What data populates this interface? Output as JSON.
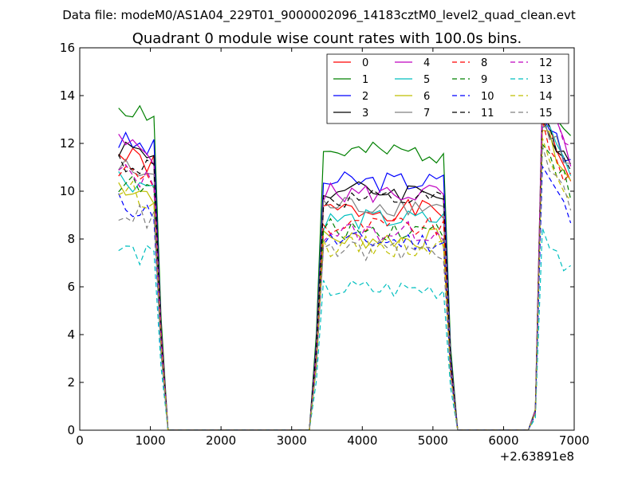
{
  "header": {
    "data_file": "Data file: modeM0/AS1A04_229T01_9000002096_14183cztM0_level2_quad_clean.evt"
  },
  "chart_data": {
    "type": "line",
    "title": "Quadrant 0 module wise count rates with 100.0s bins.",
    "xlabel": "",
    "ylabel": "",
    "x_offset_label": "+2.63891e8",
    "xlim": [
      0,
      7000
    ],
    "ylim": [
      0,
      16
    ],
    "x_ticks": [
      "0",
      "1000",
      "2000",
      "3000",
      "4000",
      "5000",
      "6000",
      "7000"
    ],
    "y_ticks": [
      "0",
      "2",
      "4",
      "6",
      "8",
      "10",
      "12",
      "14",
      "16"
    ],
    "grid": false,
    "legend_position": "top-right",
    "x": [
      550,
      650,
      750,
      850,
      950,
      1050,
      1150,
      1250,
      1350,
      1450,
      1550,
      1650,
      1750,
      1850,
      1950,
      2050,
      2150,
      2250,
      2350,
      2450,
      2550,
      2650,
      2750,
      2850,
      2950,
      3050,
      3150,
      3250,
      3350,
      3450,
      3550,
      3650,
      3750,
      3850,
      3950,
      4050,
      4150,
      4250,
      4350,
      4450,
      4550,
      4650,
      4750,
      4850,
      4950,
      5050,
      5150,
      5250,
      5350,
      5450,
      5550,
      5650,
      5750,
      5850,
      5950,
      6050,
      6150,
      6250,
      6350,
      6450,
      6550,
      6650,
      6750,
      6850,
      6950
    ],
    "series": [
      {
        "name": "0",
        "color": "#ff0000",
        "dash": "solid",
        "g1": 11.5,
        "p1": 9.2,
        "pe": 12.8,
        "seed": 1
      },
      {
        "name": "1",
        "color": "#008000",
        "dash": "solid",
        "g1": 13.6,
        "p1": 11.6,
        "pe": 14.5,
        "seed": 2
      },
      {
        "name": "2",
        "color": "#0000ff",
        "dash": "solid",
        "g1": 12.1,
        "p1": 10.4,
        "pe": 13.3,
        "seed": 3
      },
      {
        "name": "3",
        "color": "#000000",
        "dash": "solid",
        "g1": 11.9,
        "p1": 10.0,
        "pe": 12.9,
        "seed": 4
      },
      {
        "name": "4",
        "color": "#bf00bf",
        "dash": "solid",
        "g1": 12.0,
        "p1": 9.9,
        "pe": 13.6,
        "seed": 5
      },
      {
        "name": "5",
        "color": "#00bfbf",
        "dash": "solid",
        "g1": 10.6,
        "p1": 8.8,
        "pe": 13.0,
        "seed": 6
      },
      {
        "name": "6",
        "color": "#bfbf00",
        "dash": "solid",
        "g1": 10.3,
        "p1": 8.0,
        "pe": 12.6,
        "seed": 7
      },
      {
        "name": "7",
        "color": "#808080",
        "dash": "solid",
        "g1": 11.0,
        "p1": 9.4,
        "pe": 13.1,
        "seed": 8
      },
      {
        "name": "8",
        "color": "#ff0000",
        "dash": "dashed",
        "g1": 10.9,
        "p1": 8.5,
        "pe": 12.5,
        "seed": 9
      },
      {
        "name": "9",
        "color": "#008000",
        "dash": "dashed",
        "g1": 10.4,
        "p1": 8.4,
        "pe": 12.2,
        "seed": 10
      },
      {
        "name": "10",
        "color": "#0000ff",
        "dash": "dashed",
        "g1": 9.5,
        "p1": 7.9,
        "pe": 11.0,
        "seed": 11
      },
      {
        "name": "11",
        "color": "#000000",
        "dash": "dashed",
        "g1": 11.3,
        "p1": 9.6,
        "pe": 13.0,
        "seed": 12
      },
      {
        "name": "12",
        "color": "#bf00bf",
        "dash": "dashed",
        "g1": 10.8,
        "p1": 8.3,
        "pe": 13.8,
        "seed": 13
      },
      {
        "name": "13",
        "color": "#00bfbf",
        "dash": "dashed",
        "g1": 7.6,
        "p1": 5.9,
        "pe": 8.6,
        "seed": 14
      },
      {
        "name": "14",
        "color": "#bfbf00",
        "dash": "dashed",
        "g1": 10.1,
        "p1": 7.7,
        "pe": 12.1,
        "seed": 15
      },
      {
        "name": "15",
        "color": "#808080",
        "dash": "dashed",
        "g1": 9.2,
        "p1": 7.5,
        "pe": 11.5,
        "seed": 16
      }
    ]
  }
}
